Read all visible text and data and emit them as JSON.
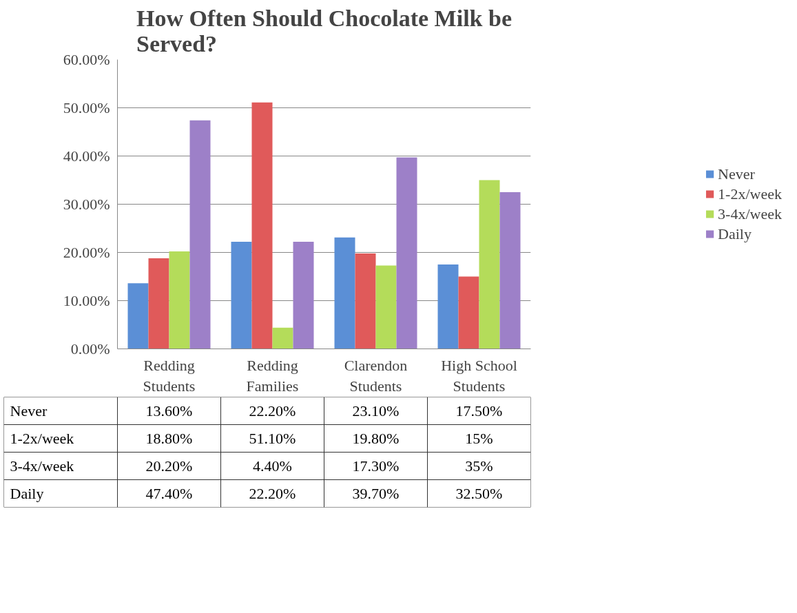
{
  "chart_data": {
    "type": "bar",
    "title": "How Often Should Chocolate Milk be Served?",
    "categories": [
      "Redding Students",
      "Redding Families",
      "Clarendon Students",
      "High School Students"
    ],
    "series": [
      {
        "name": "Never",
        "color": "#5b8fd6",
        "values": [
          13.6,
          22.2,
          23.1,
          17.5
        ],
        "value_labels": [
          "13.60%",
          "22.20%",
          "23.10%",
          "17.50%"
        ]
      },
      {
        "name": "1-2x/week",
        "color": "#e05a5a",
        "values": [
          18.8,
          51.1,
          19.8,
          15
        ],
        "value_labels": [
          "18.80%",
          "51.10%",
          "19.80%",
          "15%"
        ]
      },
      {
        "name": "3-4x/week",
        "color": "#b4dc5a",
        "values": [
          20.2,
          4.4,
          17.3,
          35
        ],
        "value_labels": [
          "20.20%",
          "4.40%",
          "17.30%",
          "35%"
        ]
      },
      {
        "name": "Daily",
        "color": "#9d80c8",
        "values": [
          47.4,
          22.2,
          39.7,
          32.5
        ],
        "value_labels": [
          "47.40%",
          "22.20%",
          "39.70%",
          "32.50%"
        ]
      }
    ],
    "ylim": [
      0,
      60
    ],
    "yticks": [
      {
        "value": 0,
        "label": "0.00%"
      },
      {
        "value": 10,
        "label": "10.00%"
      },
      {
        "value": 20,
        "label": "20.00%"
      },
      {
        "value": 30,
        "label": "30.00%"
      },
      {
        "value": 40,
        "label": "40.00%"
      },
      {
        "value": 50,
        "label": "50.00%"
      },
      {
        "value": 60,
        "label": "60.00%"
      }
    ],
    "grid": "y",
    "legend": "right"
  }
}
